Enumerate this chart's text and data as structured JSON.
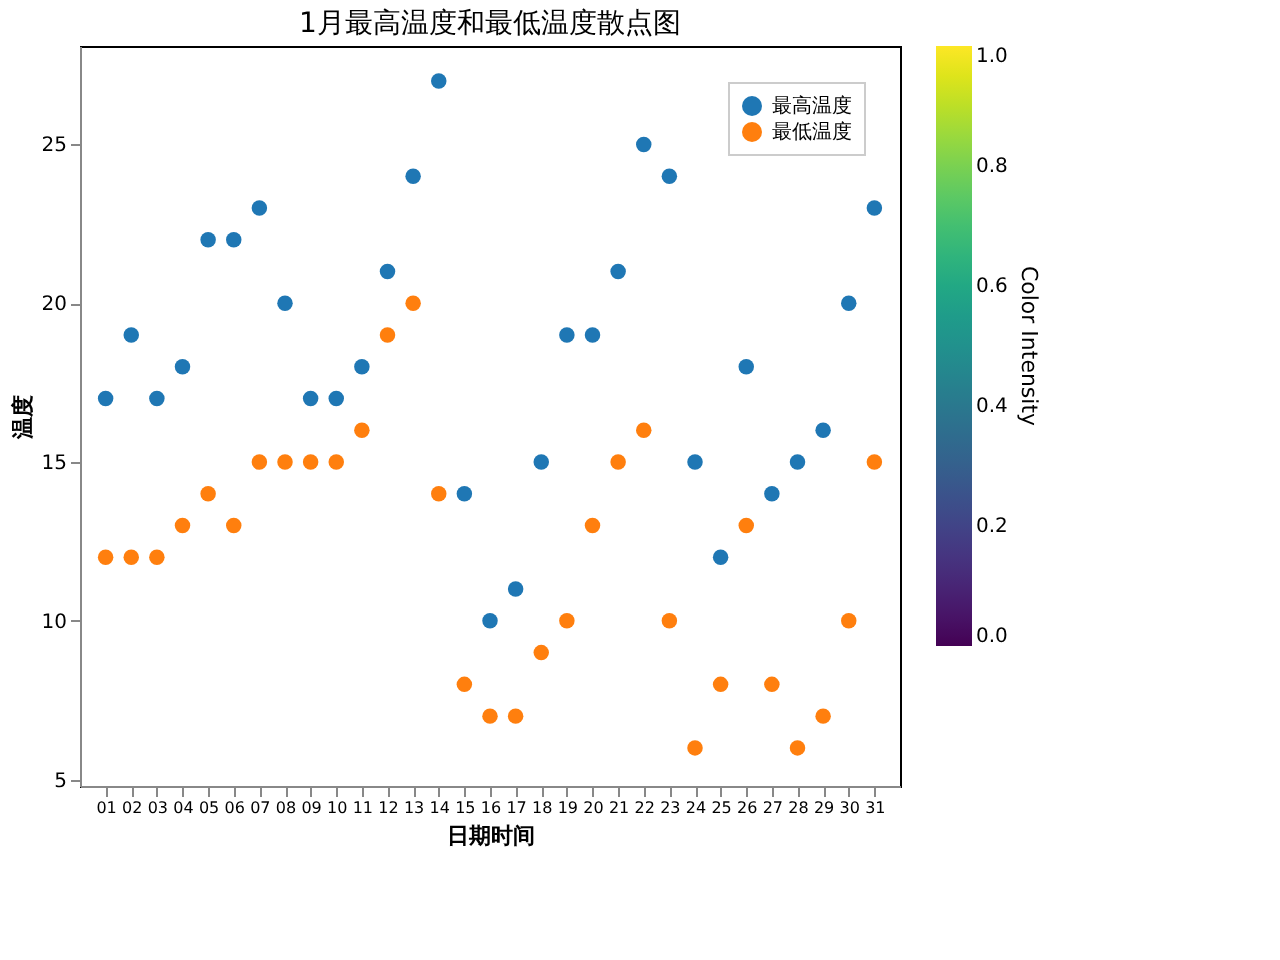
{
  "chart_data": {
    "type": "scatter",
    "title": "1月最高温度和最低温度散点图",
    "xlabel": "日期时间",
    "ylabel": "温度",
    "categories": [
      "01",
      "02",
      "03",
      "04",
      "05",
      "06",
      "07",
      "08",
      "09",
      "10",
      "11",
      "12",
      "13",
      "14",
      "15",
      "16",
      "17",
      "18",
      "19",
      "20",
      "21",
      "22",
      "23",
      "24",
      "25",
      "26",
      "27",
      "28",
      "29",
      "30",
      "31"
    ],
    "series": [
      {
        "name": "最高温度",
        "color": "#1f77b4",
        "values": [
          17,
          19,
          17,
          18,
          22,
          22,
          23,
          20,
          17,
          17,
          18,
          21,
          24,
          27,
          14,
          10,
          11,
          15,
          19,
          19,
          21,
          25,
          24,
          15,
          12,
          18,
          14,
          15,
          16,
          20,
          23
        ]
      },
      {
        "name": "最低温度",
        "color": "#ff7f0e",
        "values": [
          12,
          12,
          12,
          13,
          14,
          13,
          15,
          15,
          15,
          15,
          16,
          19,
          20,
          14,
          8,
          7,
          7,
          9,
          10,
          13,
          15,
          16,
          10,
          6,
          8,
          13,
          8,
          6,
          7,
          10,
          15
        ]
      }
    ],
    "ylim": [
      4.8,
      28.1
    ],
    "yticks": [
      5,
      10,
      15,
      20,
      25
    ],
    "clabel": "Color Intensity",
    "clim": [
      0,
      1
    ],
    "cticks": [
      {
        "value": 0,
        "label": "0.0"
      },
      {
        "value": 0.2,
        "label": "0.2"
      },
      {
        "value": 0.4,
        "label": "0.4"
      },
      {
        "value": 0.6,
        "label": "0.6"
      },
      {
        "value": 0.8,
        "label": "0.8"
      },
      {
        "value": 1,
        "label": "1.0"
      }
    ],
    "grid": false,
    "legend": "top right",
    "marker": "circle"
  }
}
